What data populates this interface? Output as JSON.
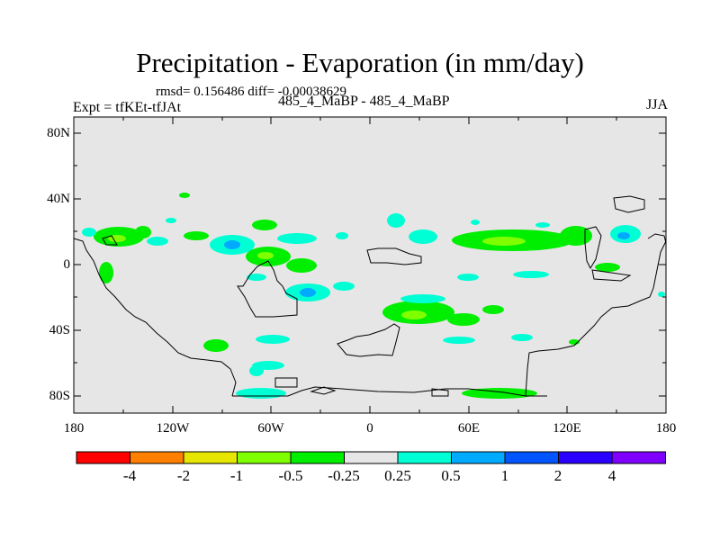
{
  "title": "Precipitation - Evaporation (in mm/day)",
  "stats": "rmsd= 0.156486 diff= -0.00038629",
  "left_label": "Expt = tfKEt-tfJAt",
  "center_label": "485_4_MaBP - 485_4_MaBP",
  "right_label": "JJA",
  "y_ticks": [
    "80N",
    "40N",
    "0",
    "40S",
    "80S"
  ],
  "x_ticks": [
    "180",
    "120W",
    "60W",
    "0",
    "60E",
    "120E",
    "180"
  ],
  "colorbar": {
    "labels": [
      "-4",
      "-2",
      "-1",
      "-0.5",
      "-0.25",
      "0.25",
      "0.5",
      "1",
      "2",
      "4"
    ],
    "colors": [
      "#ff0000",
      "#ff8000",
      "#e6e600",
      "#80ff00",
      "#00ee00",
      "#e6e6e6",
      "#00ffd5",
      "#00aaff",
      "#0055ff",
      "#2a00ff",
      "#8000ff"
    ]
  },
  "map_colors": {
    "background": "#e6e6e6",
    "wet_light": "#00ffd5",
    "wet_medium": "#00aaff",
    "wet_strong": "#0055ff",
    "dry_light": "#00ee00",
    "dry_medium": "#80ff00"
  }
}
